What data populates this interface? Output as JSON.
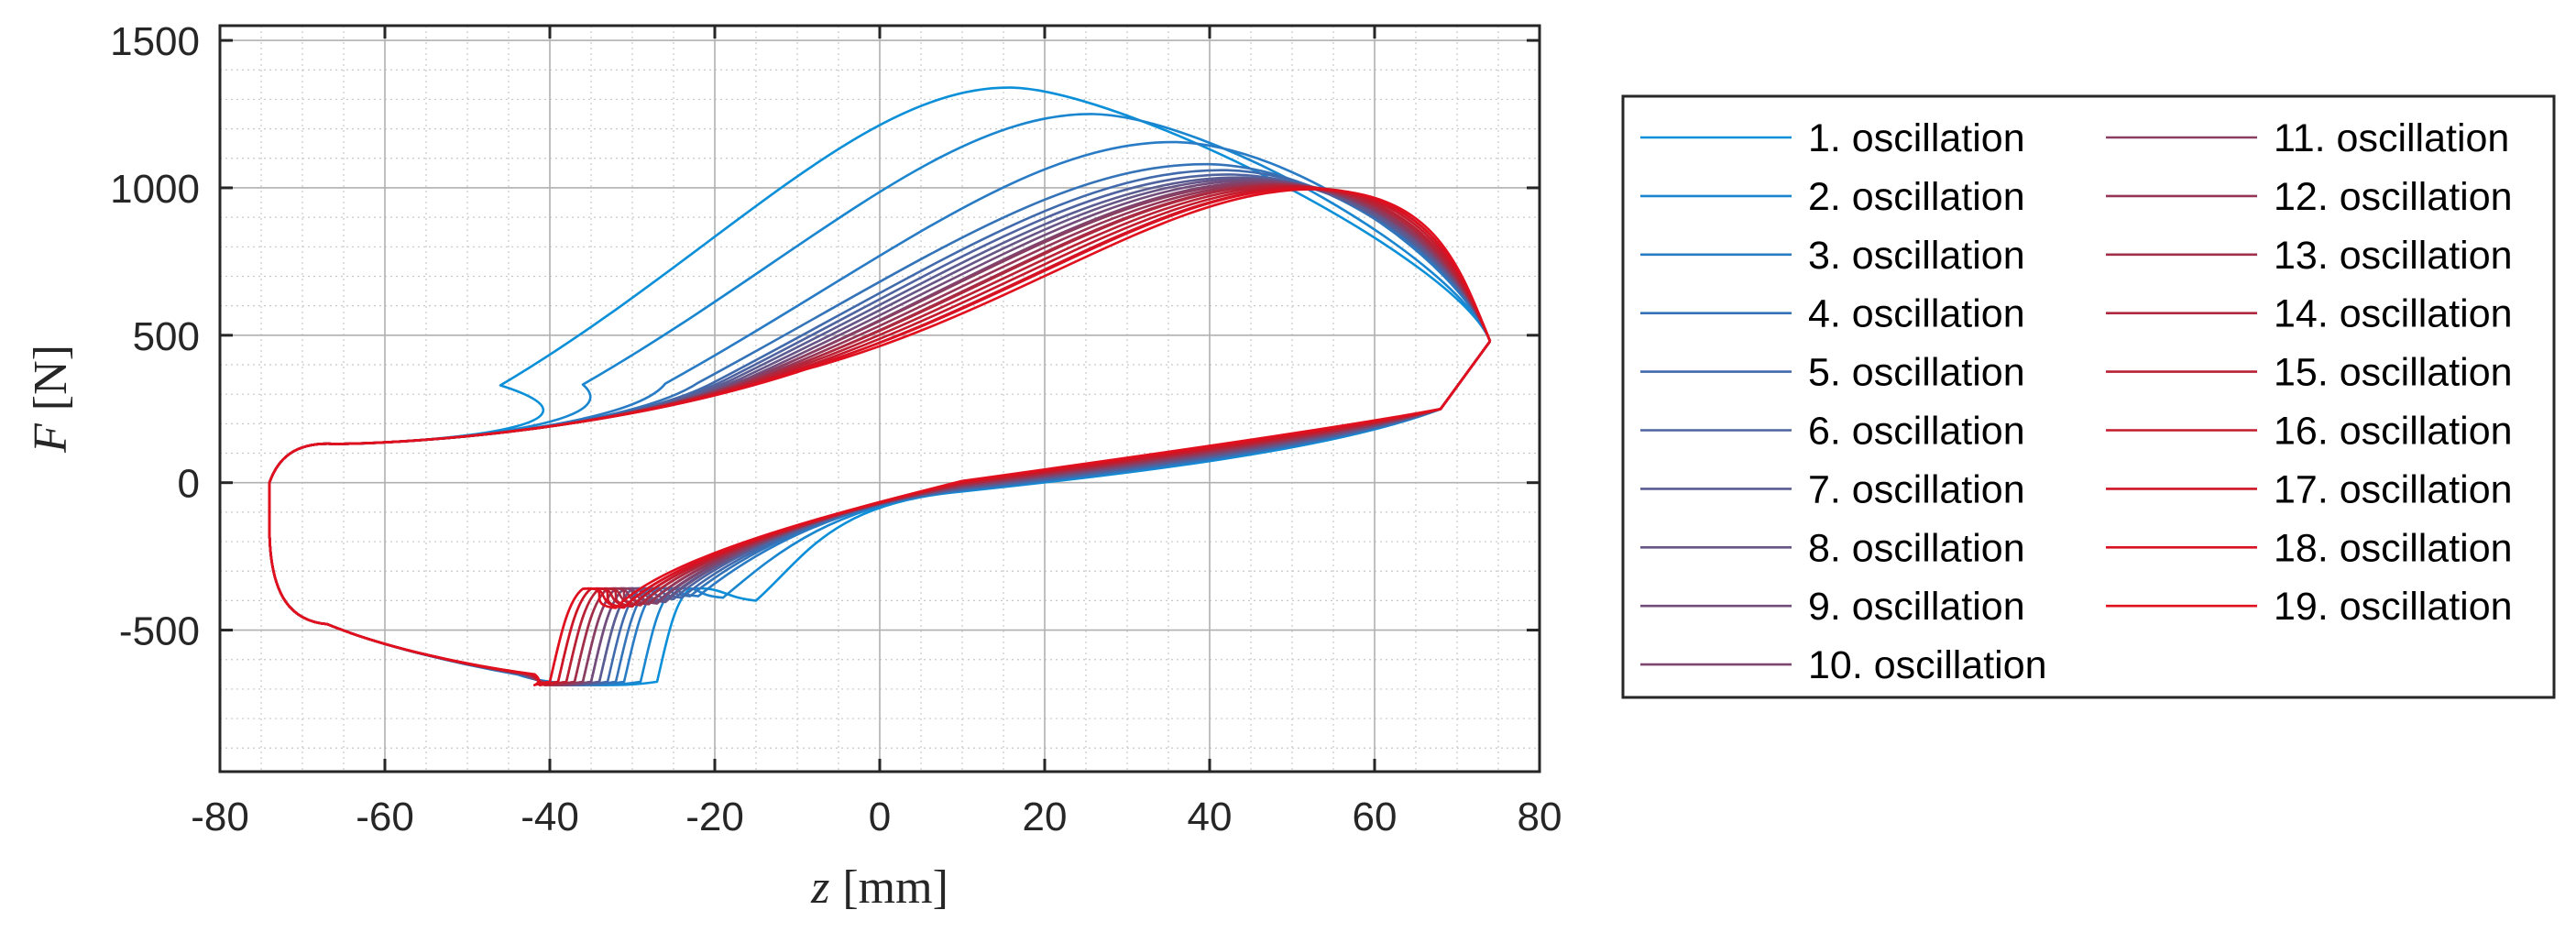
{
  "chart_data": {
    "type": "line",
    "title": "",
    "xlabel_var": "z",
    "xlabel_unit": "[mm]",
    "ylabel_var": "F",
    "ylabel_unit": "[N]",
    "xlim": [
      -80,
      80
    ],
    "ylim": [
      -980,
      1550
    ],
    "xticks": [
      -80,
      -60,
      -40,
      -20,
      0,
      20,
      40,
      60,
      80
    ],
    "yticks": [
      -500,
      0,
      500,
      1000,
      1500
    ],
    "xtick_labels": [
      "-80",
      "-60",
      "-40",
      "-20",
      "0",
      "20",
      "40",
      "60",
      "80"
    ],
    "ytick_labels": [
      "-500",
      "0",
      "500",
      "1000",
      "1500"
    ],
    "grid": true,
    "minor_grid": true,
    "legend_placement": "outside-right",
    "color_start": "#0a8fd8",
    "color_end": "#e0101e",
    "loop_shape": {
      "right_tip": [
        74,
        480
      ],
      "left_tip": [
        -74,
        -100
      ],
      "shelf_force": 125,
      "bottom_min_force": -695,
      "lower_plateau_force": -420
    },
    "series": [
      {
        "name": "1. oscillation",
        "peak": [
          16,
          1340
        ],
        "drop_z": -27,
        "kink": [
          -15,
          -400
        ],
        "color": "#0a8fd8"
      },
      {
        "name": "2. oscillation",
        "peak": [
          26,
          1250
        ],
        "drop_z": -29,
        "kink": [
          -19,
          -390
        ],
        "color": "#1a86d0"
      },
      {
        "name": "3. oscillation",
        "peak": [
          36,
          1155
        ],
        "drop_z": -31,
        "kink": [
          -22,
          -385
        ],
        "color": "#287bc4"
      },
      {
        "name": "4. oscillation",
        "peak": [
          40,
          1080
        ],
        "drop_z": -32,
        "kink": [
          -23,
          -385
        ],
        "color": "#3473b8"
      },
      {
        "name": "5. oscillation",
        "peak": [
          42,
          1060
        ],
        "drop_z": -33,
        "kink": [
          -24,
          -390
        ],
        "color": "#406aac"
      },
      {
        "name": "6. oscillation",
        "peak": [
          43,
          1045
        ],
        "drop_z": -34,
        "kink": [
          -25,
          -395
        ],
        "color": "#4f63a0"
      },
      {
        "name": "7. oscillation",
        "peak": [
          44,
          1035
        ],
        "drop_z": -34,
        "kink": [
          -26,
          -400
        ],
        "color": "#5a5c92"
      },
      {
        "name": "8. oscillation",
        "peak": [
          45,
          1030
        ],
        "drop_z": -35,
        "kink": [
          -26,
          -405
        ],
        "color": "#665586"
      },
      {
        "name": "9. oscillation",
        "peak": [
          46,
          1025
        ],
        "drop_z": -35,
        "kink": [
          -27,
          -405
        ],
        "color": "#724c7a"
      },
      {
        "name": "10. oscillation",
        "peak": [
          47,
          1020
        ],
        "drop_z": -36,
        "kink": [
          -27,
          -410
        ],
        "color": "#7e456e"
      },
      {
        "name": "11. oscillation",
        "peak": [
          47,
          1015
        ],
        "drop_z": -36,
        "kink": [
          -28,
          -410
        ],
        "color": "#8a3e62"
      },
      {
        "name": "12. oscillation",
        "peak": [
          48,
          1012
        ],
        "drop_z": -37,
        "kink": [
          -28,
          -412
        ],
        "color": "#963656"
      },
      {
        "name": "13. oscillation",
        "peak": [
          49,
          1010
        ],
        "drop_z": -37,
        "kink": [
          -29,
          -414
        ],
        "color": "#a22f4a"
      },
      {
        "name": "14. oscillation",
        "peak": [
          49,
          1008
        ],
        "drop_z": -38,
        "kink": [
          -29,
          -416
        ],
        "color": "#ae283e"
      },
      {
        "name": "15. oscillation",
        "peak": [
          50,
          1005
        ],
        "drop_z": -38,
        "kink": [
          -30,
          -418
        ],
        "color": "#ba2134"
      },
      {
        "name": "16. oscillation",
        "peak": [
          51,
          1002
        ],
        "drop_z": -39,
        "kink": [
          -30,
          -420
        ],
        "color": "#c41a2c"
      },
      {
        "name": "17. oscillation",
        "peak": [
          52,
          1000
        ],
        "drop_z": -39,
        "kink": [
          -31,
          -422
        ],
        "color": "#ce1526"
      },
      {
        "name": "18. oscillation",
        "peak": [
          52,
          998
        ],
        "drop_z": -40,
        "kink": [
          -31,
          -424
        ],
        "color": "#d81222"
      },
      {
        "name": "19. oscillation",
        "peak": [
          53,
          995
        ],
        "drop_z": -40,
        "kink": [
          -32,
          -425
        ],
        "color": "#e0101e"
      }
    ]
  }
}
